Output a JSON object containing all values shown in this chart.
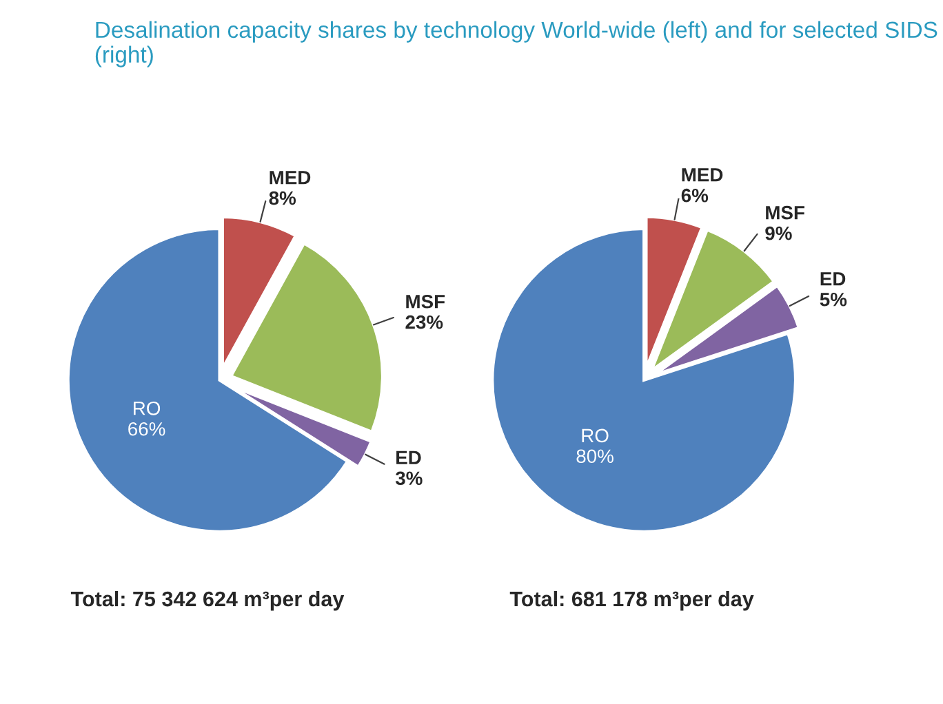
{
  "chart_data": [
    {
      "type": "pie",
      "title": "Desalination capacity shares by technology World-wide (left) and for selected SIDS (right)",
      "categories": [
        "MED",
        "MSF",
        "ED",
        "RO"
      ],
      "values": [
        8,
        23,
        3,
        66
      ],
      "value_labels": [
        "8%",
        "23%",
        "3%",
        "66%"
      ],
      "colors": [
        "#c0504d",
        "#9bbb59",
        "#8064a2",
        "#4f81bd"
      ],
      "annotations": [
        "Total: 75 342 624 m³per day"
      ]
    },
    {
      "type": "pie",
      "categories": [
        "MED",
        "MSF",
        "ED",
        "RO"
      ],
      "values": [
        6,
        9,
        5,
        80
      ],
      "value_labels": [
        "6%",
        "9%",
        "5%",
        "80%"
      ],
      "colors": [
        "#c0504d",
        "#9bbb59",
        "#8064a2",
        "#4f81bd"
      ],
      "annotations": [
        "Total: 681 178 m³per day"
      ]
    }
  ]
}
